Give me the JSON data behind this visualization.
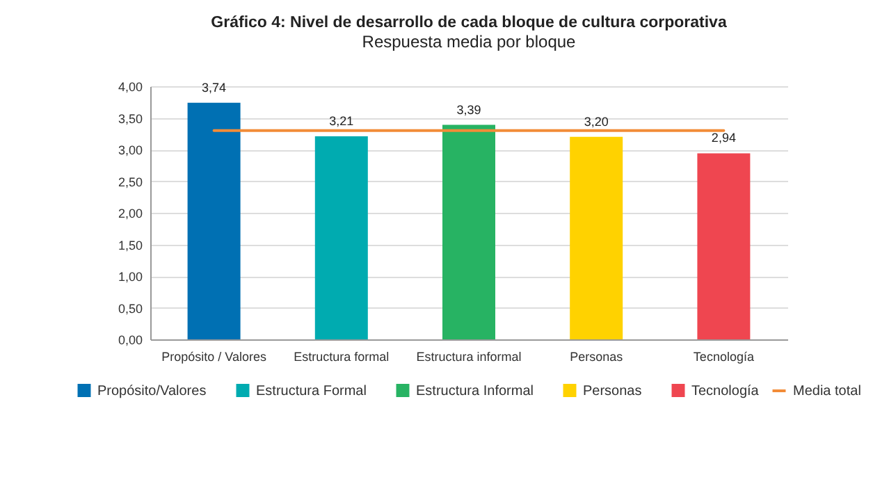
{
  "chart_data": {
    "type": "bar",
    "title": "Gráfico 4: Nivel de desarrollo de cada bloque de cultura corporativa",
    "subtitle": "Respuesta media por bloque",
    "categories": [
      "Propósito / Valores",
      "Estructura formal",
      "Estructura informal",
      "Personas",
      "Tecnología"
    ],
    "series": [
      {
        "name": "Propósito/Valores",
        "color": "#0070b3",
        "values": [
          3.74,
          null,
          null,
          null,
          null
        ],
        "value_labels": [
          "3,74",
          null,
          null,
          null,
          null
        ]
      },
      {
        "name": "Estructura Formal",
        "color": "#00abb0",
        "values": [
          null,
          3.21,
          null,
          null,
          null
        ],
        "value_labels": [
          null,
          "3,21",
          null,
          null,
          null
        ]
      },
      {
        "name": "Estructura Informal",
        "color": "#27b363",
        "values": [
          null,
          null,
          3.39,
          null,
          null
        ],
        "value_labels": [
          null,
          null,
          "3,39",
          null,
          null
        ]
      },
      {
        "name": "Personas",
        "color": "#ffd200",
        "values": [
          null,
          null,
          null,
          3.2,
          null
        ],
        "value_labels": [
          null,
          null,
          null,
          "3,20",
          null
        ]
      },
      {
        "name": "Tecnología",
        "color": "#ef4650",
        "values": [
          null,
          null,
          null,
          null,
          2.94
        ],
        "value_labels": [
          null,
          null,
          null,
          null,
          "2,94"
        ]
      },
      {
        "name": "Media total",
        "type": "line",
        "color": "#f28c38",
        "values": [
          3.3,
          3.3,
          3.3,
          3.3,
          3.3
        ]
      }
    ],
    "ylim": [
      0,
      4
    ],
    "yticks": [
      {
        "value": 0,
        "label": "0,00"
      },
      {
        "value": 0.5,
        "label": "0,50"
      },
      {
        "value": 1,
        "label": "1,00"
      },
      {
        "value": 1.5,
        "label": "1,50"
      },
      {
        "value": 2,
        "label": "2,00"
      },
      {
        "value": 2.5,
        "label": "2,50"
      },
      {
        "value": 3,
        "label": "3,00"
      },
      {
        "value": 3.5,
        "label": "3,50"
      },
      {
        "value": 4,
        "label": "4,00"
      }
    ],
    "grid": "y",
    "legend": "bottom"
  }
}
